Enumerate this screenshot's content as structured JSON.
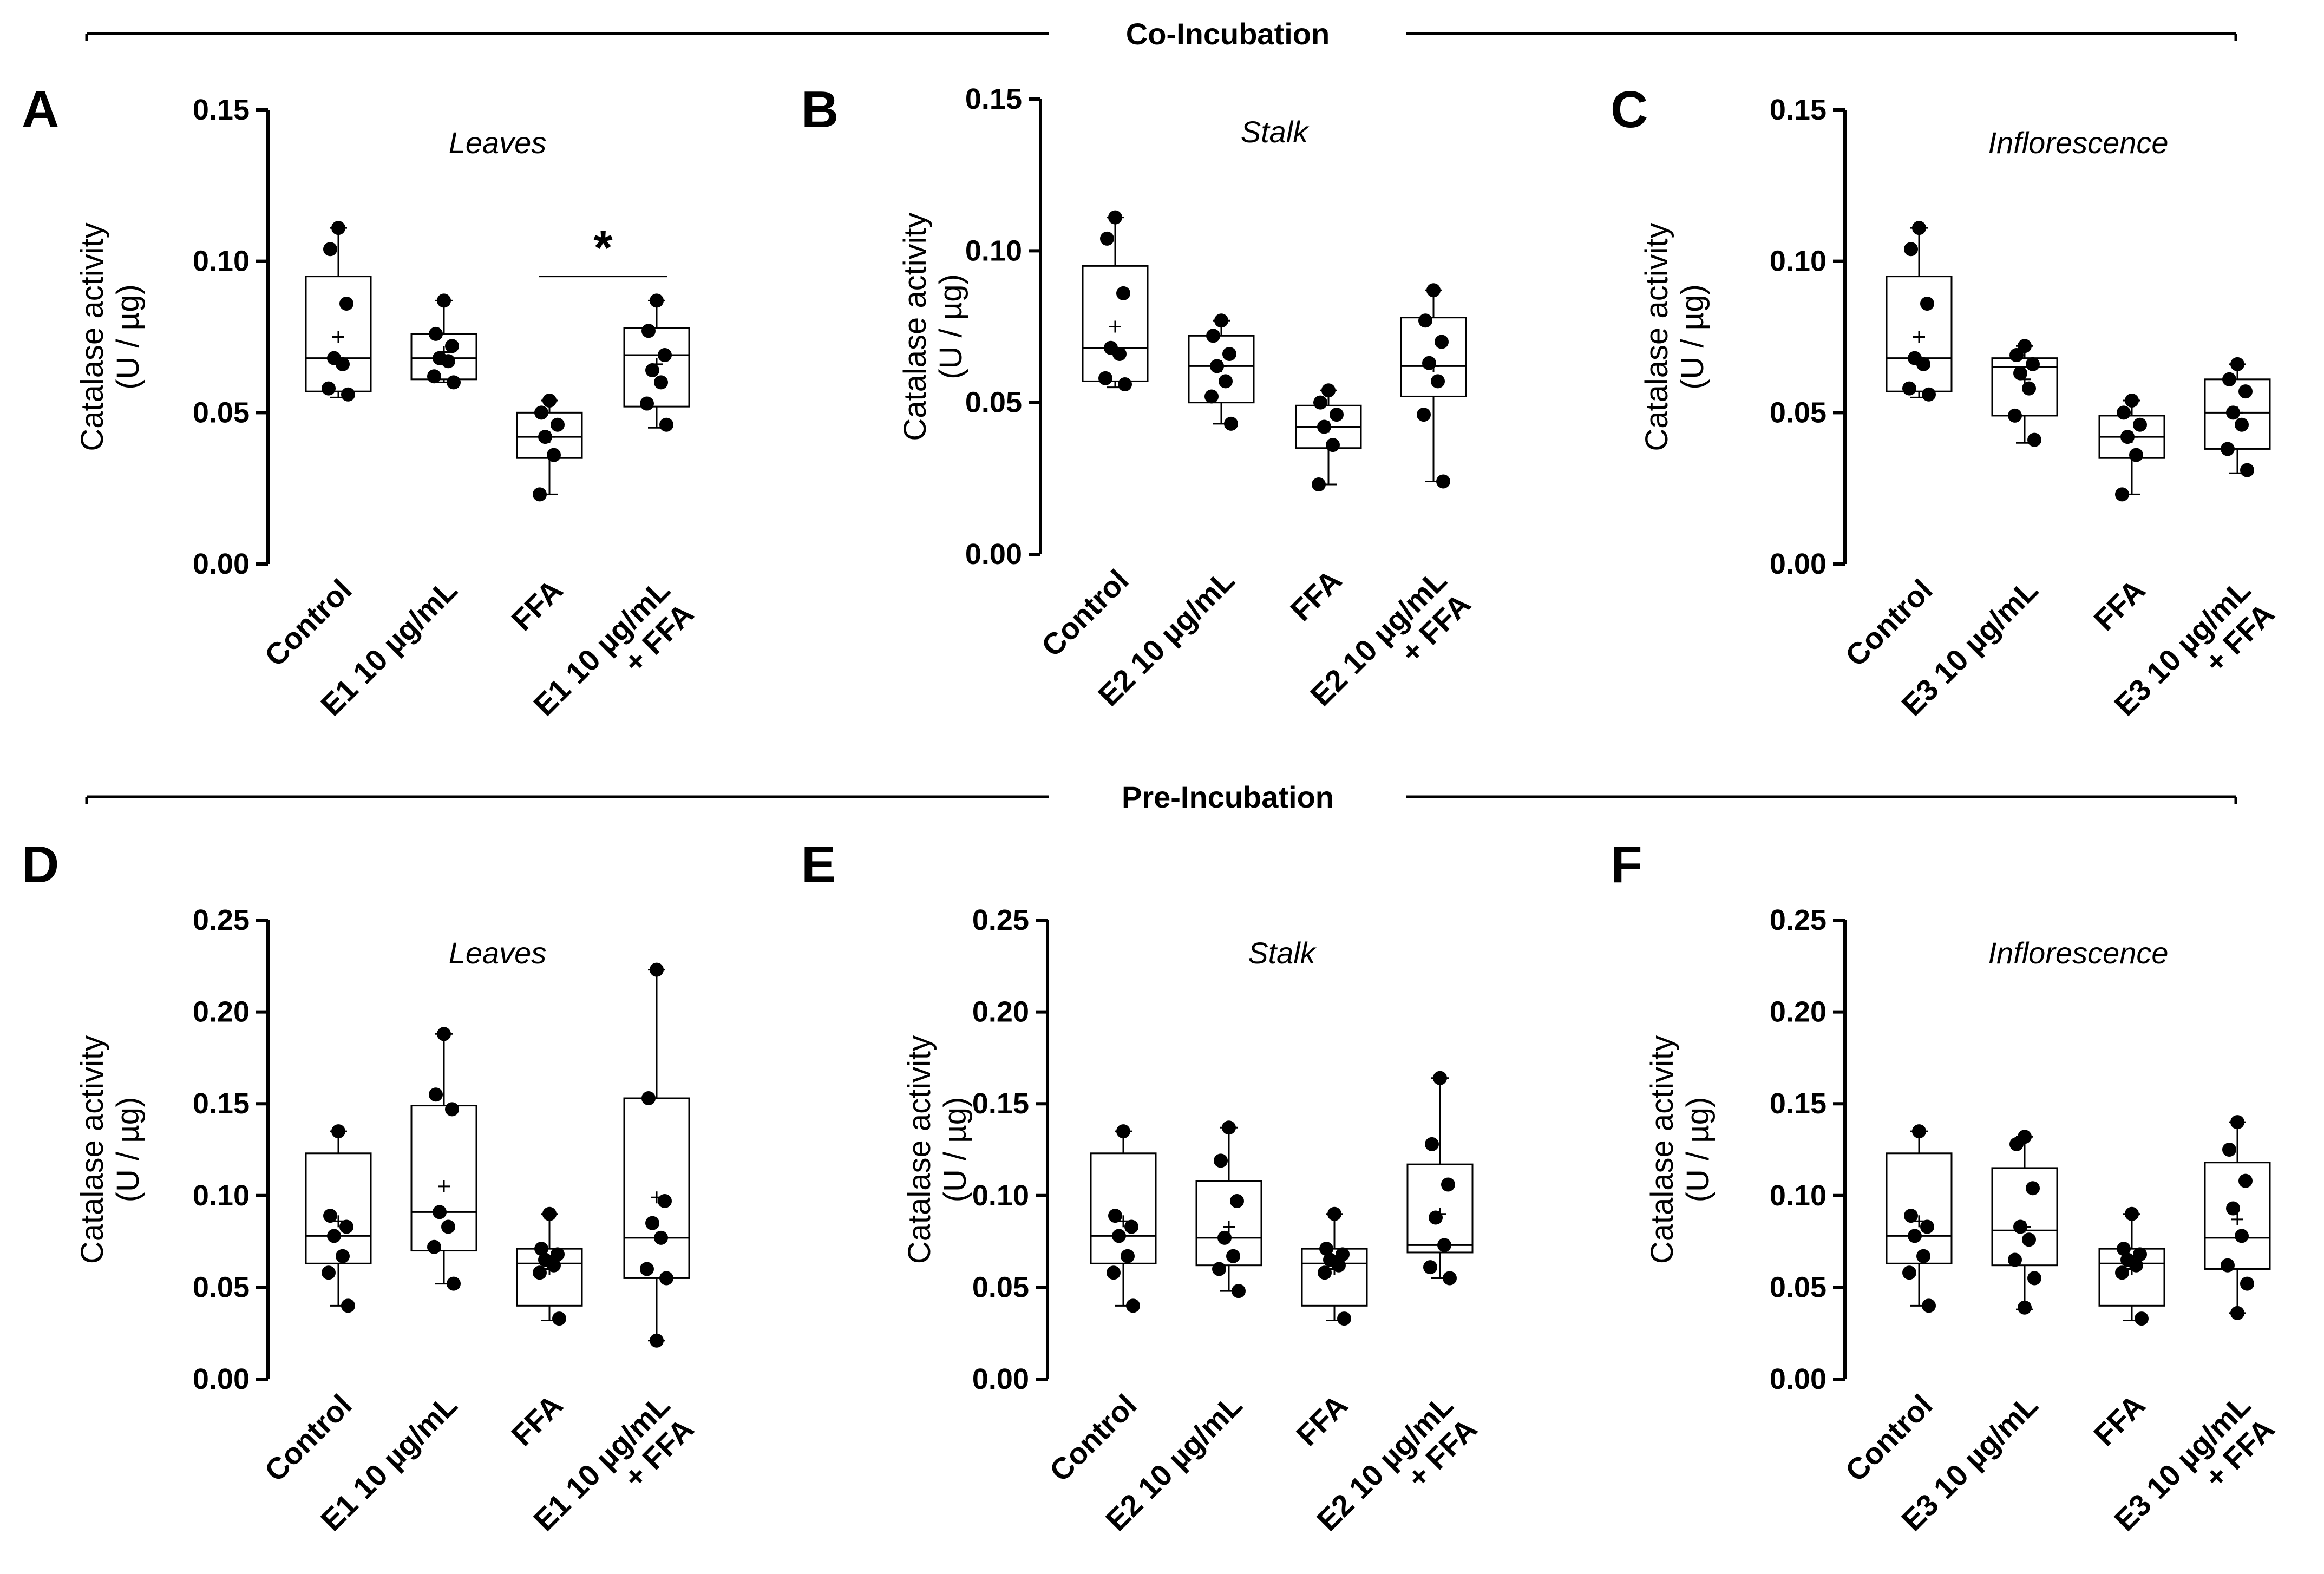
{
  "sections": [
    {
      "id": "co",
      "title": "Co-Incubation"
    },
    {
      "id": "pre",
      "title": "Pre-Incubation"
    }
  ],
  "ylabel_line1": "Catalase activity",
  "ylabel_line2": "(U / µg)",
  "colors": {
    "ink": "#000000",
    "background": "#ffffff"
  },
  "chart_data": [
    {
      "type": "box",
      "panel": "A",
      "section": "co",
      "subtitle": "Leaves",
      "ylim": [
        0,
        0.15
      ],
      "yticks": [
        "0.00",
        "0.05",
        "0.10",
        "0.15"
      ],
      "ytick_values": [
        0,
        0.05,
        0.1,
        0.15
      ],
      "categories": [
        [
          "Control"
        ],
        [
          "E1 10 µg/mL"
        ],
        [
          "FFA"
        ],
        [
          "E1 10 µg/mL",
          "+ FFA"
        ]
      ],
      "boxes": [
        {
          "min": 0.055,
          "q1": 0.057,
          "median": 0.068,
          "q3": 0.095,
          "max": 0.111,
          "mean": 0.075,
          "points": [
            0.111,
            0.104,
            0.086,
            0.068,
            0.066,
            0.058,
            0.056
          ]
        },
        {
          "min": 0.06,
          "q1": 0.061,
          "median": 0.068,
          "q3": 0.076,
          "max": 0.087,
          "mean": 0.07,
          "points": [
            0.087,
            0.076,
            0.072,
            0.068,
            0.067,
            0.062,
            0.06
          ]
        },
        {
          "min": 0.023,
          "q1": 0.035,
          "median": 0.042,
          "q3": 0.05,
          "max": 0.054,
          "mean": 0.042,
          "points": [
            0.054,
            0.05,
            0.046,
            0.042,
            0.036,
            0.023
          ]
        },
        {
          "min": 0.045,
          "q1": 0.052,
          "median": 0.069,
          "q3": 0.078,
          "max": 0.087,
          "mean": 0.066,
          "points": [
            0.087,
            0.077,
            0.069,
            0.064,
            0.06,
            0.053,
            0.046
          ]
        }
      ],
      "significance": {
        "from": 2,
        "to": 3,
        "y": 0.095,
        "label": "*"
      }
    },
    {
      "type": "box",
      "panel": "B",
      "section": "co",
      "subtitle": "Stalk",
      "ylim": [
        0,
        0.15
      ],
      "yticks": [
        "0.00",
        "0.05",
        "0.10",
        "0.15"
      ],
      "ytick_values": [
        0,
        0.05,
        0.1,
        0.15
      ],
      "categories": [
        [
          "Control"
        ],
        [
          "E2 10 µg/mL"
        ],
        [
          "FFA"
        ],
        [
          "E2 10 µg/mL",
          "+ FFA"
        ]
      ],
      "boxes": [
        {
          "min": 0.055,
          "q1": 0.057,
          "median": 0.068,
          "q3": 0.095,
          "max": 0.111,
          "mean": 0.075,
          "points": [
            0.111,
            0.104,
            0.086,
            0.068,
            0.066,
            0.058,
            0.056
          ]
        },
        {
          "min": 0.043,
          "q1": 0.05,
          "median": 0.062,
          "q3": 0.072,
          "max": 0.077,
          "mean": 0.062,
          "points": [
            0.077,
            0.072,
            0.066,
            0.062,
            0.057,
            0.052,
            0.043
          ]
        },
        {
          "min": 0.023,
          "q1": 0.035,
          "median": 0.042,
          "q3": 0.049,
          "max": 0.054,
          "mean": 0.042,
          "points": [
            0.054,
            0.05,
            0.046,
            0.042,
            0.036,
            0.023
          ]
        },
        {
          "min": 0.024,
          "q1": 0.052,
          "median": 0.062,
          "q3": 0.078,
          "max": 0.087,
          "mean": 0.062,
          "points": [
            0.087,
            0.077,
            0.07,
            0.063,
            0.057,
            0.046,
            0.024
          ]
        }
      ]
    },
    {
      "type": "box",
      "panel": "C",
      "section": "co",
      "subtitle": "Inflorescence",
      "ylim": [
        0,
        0.15
      ],
      "yticks": [
        "0.00",
        "0.05",
        "0.10",
        "0.15"
      ],
      "ytick_values": [
        0,
        0.05,
        0.1,
        0.15
      ],
      "categories": [
        [
          "Control"
        ],
        [
          "E3 10 µg/mL"
        ],
        [
          "FFA"
        ],
        [
          "E3 10 µg/mL",
          "+ FFA"
        ]
      ],
      "boxes": [
        {
          "min": 0.055,
          "q1": 0.057,
          "median": 0.068,
          "q3": 0.095,
          "max": 0.111,
          "mean": 0.075,
          "points": [
            0.111,
            0.104,
            0.086,
            0.068,
            0.066,
            0.058,
            0.056
          ]
        },
        {
          "min": 0.04,
          "q1": 0.049,
          "median": 0.065,
          "q3": 0.068,
          "max": 0.072,
          "mean": 0.061,
          "points": [
            0.072,
            0.069,
            0.066,
            0.063,
            0.058,
            0.049,
            0.041
          ]
        },
        {
          "min": 0.023,
          "q1": 0.035,
          "median": 0.042,
          "q3": 0.049,
          "max": 0.054,
          "mean": 0.042,
          "points": [
            0.054,
            0.05,
            0.046,
            0.042,
            0.036,
            0.023
          ]
        },
        {
          "min": 0.03,
          "q1": 0.038,
          "median": 0.05,
          "q3": 0.061,
          "max": 0.066,
          "mean": 0.05,
          "points": [
            0.066,
            0.061,
            0.057,
            0.05,
            0.046,
            0.038,
            0.031
          ]
        }
      ]
    },
    {
      "type": "box",
      "panel": "D",
      "section": "pre",
      "subtitle": "Leaves",
      "ylim": [
        0,
        0.25
      ],
      "yticks": [
        "0.00",
        "0.05",
        "0.10",
        "0.15",
        "0.20",
        "0.25"
      ],
      "ytick_values": [
        0,
        0.05,
        0.1,
        0.15,
        0.2,
        0.25
      ],
      "categories": [
        [
          "Control"
        ],
        [
          "E1 10 µg/mL"
        ],
        [
          "FFA"
        ],
        [
          "E1 10 µg/mL",
          "+ FFA"
        ]
      ],
      "boxes": [
        {
          "min": 0.04,
          "q1": 0.063,
          "median": 0.078,
          "q3": 0.123,
          "max": 0.135,
          "mean": 0.086,
          "points": [
            0.135,
            0.089,
            0.083,
            0.078,
            0.067,
            0.058,
            0.04
          ]
        },
        {
          "min": 0.052,
          "q1": 0.07,
          "median": 0.091,
          "q3": 0.149,
          "max": 0.188,
          "mean": 0.105,
          "points": [
            0.188,
            0.155,
            0.147,
            0.091,
            0.083,
            0.072,
            0.052
          ]
        },
        {
          "min": 0.032,
          "q1": 0.04,
          "median": 0.063,
          "q3": 0.071,
          "max": 0.09,
          "mean": 0.06,
          "points": [
            0.09,
            0.071,
            0.068,
            0.065,
            0.062,
            0.058,
            0.033
          ]
        },
        {
          "min": 0.021,
          "q1": 0.055,
          "median": 0.077,
          "q3": 0.153,
          "max": 0.223,
          "mean": 0.099,
          "points": [
            0.223,
            0.153,
            0.097,
            0.085,
            0.077,
            0.06,
            0.055,
            0.021
          ]
        }
      ]
    },
    {
      "type": "box",
      "panel": "E",
      "section": "pre",
      "subtitle": "Stalk",
      "ylim": [
        0,
        0.25
      ],
      "yticks": [
        "0.00",
        "0.05",
        "0.10",
        "0.15",
        "0.20",
        "0.25"
      ],
      "ytick_values": [
        0,
        0.05,
        0.1,
        0.15,
        0.2,
        0.25
      ],
      "categories": [
        [
          "Control"
        ],
        [
          "E2 10 µg/mL"
        ],
        [
          "FFA"
        ],
        [
          "E2 10 µg/mL",
          "+ FFA"
        ]
      ],
      "boxes": [
        {
          "min": 0.04,
          "q1": 0.063,
          "median": 0.078,
          "q3": 0.123,
          "max": 0.135,
          "mean": 0.086,
          "points": [
            0.135,
            0.089,
            0.083,
            0.078,
            0.067,
            0.058,
            0.04
          ]
        },
        {
          "min": 0.048,
          "q1": 0.062,
          "median": 0.077,
          "q3": 0.108,
          "max": 0.137,
          "mean": 0.083,
          "points": [
            0.137,
            0.119,
            0.097,
            0.077,
            0.067,
            0.06,
            0.048
          ]
        },
        {
          "min": 0.032,
          "q1": 0.04,
          "median": 0.063,
          "q3": 0.071,
          "max": 0.09,
          "mean": 0.06,
          "points": [
            0.09,
            0.071,
            0.068,
            0.065,
            0.062,
            0.058,
            0.033
          ]
        },
        {
          "min": 0.055,
          "q1": 0.069,
          "median": 0.073,
          "q3": 0.117,
          "max": 0.164,
          "mean": 0.09,
          "points": [
            0.164,
            0.128,
            0.106,
            0.088,
            0.073,
            0.061,
            0.055
          ]
        }
      ]
    },
    {
      "type": "box",
      "panel": "F",
      "section": "pre",
      "subtitle": "Inflorescence",
      "ylim": [
        0,
        0.25
      ],
      "yticks": [
        "0.00",
        "0.05",
        "0.10",
        "0.15",
        "0.20",
        "0.25"
      ],
      "ytick_values": [
        0,
        0.05,
        0.1,
        0.15,
        0.2,
        0.25
      ],
      "categories": [
        [
          "Control"
        ],
        [
          "E3 10 µg/mL"
        ],
        [
          "FFA"
        ],
        [
          "E3 10 µg/mL",
          "+ FFA"
        ]
      ],
      "boxes": [
        {
          "min": 0.04,
          "q1": 0.063,
          "median": 0.078,
          "q3": 0.123,
          "max": 0.135,
          "mean": 0.086,
          "points": [
            0.135,
            0.089,
            0.083,
            0.078,
            0.067,
            0.058,
            0.04
          ]
        },
        {
          "min": 0.038,
          "q1": 0.062,
          "median": 0.081,
          "q3": 0.115,
          "max": 0.132,
          "mean": 0.083,
          "points": [
            0.132,
            0.128,
            0.104,
            0.083,
            0.076,
            0.065,
            0.055,
            0.039
          ]
        },
        {
          "min": 0.032,
          "q1": 0.04,
          "median": 0.063,
          "q3": 0.071,
          "max": 0.09,
          "mean": 0.06,
          "points": [
            0.09,
            0.071,
            0.068,
            0.065,
            0.062,
            0.058,
            0.033
          ]
        },
        {
          "min": 0.036,
          "q1": 0.06,
          "median": 0.077,
          "q3": 0.118,
          "max": 0.14,
          "mean": 0.087,
          "points": [
            0.14,
            0.125,
            0.108,
            0.093,
            0.078,
            0.062,
            0.052,
            0.036
          ]
        }
      ]
    }
  ]
}
